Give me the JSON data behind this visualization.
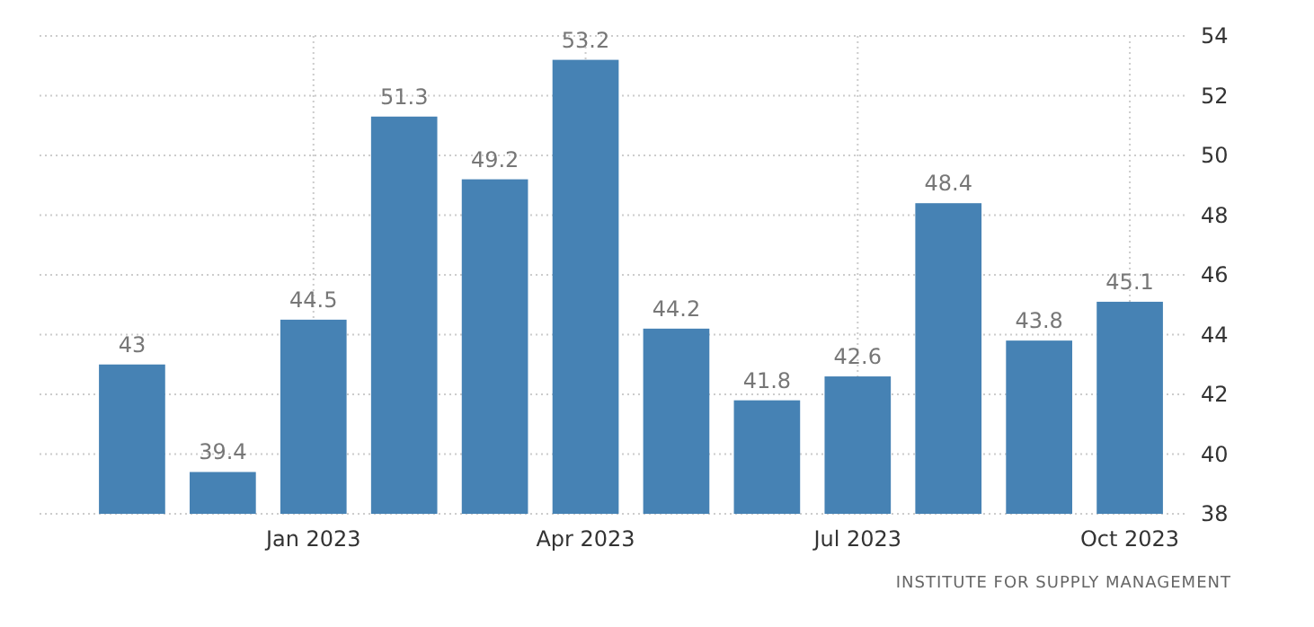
{
  "chart_data": {
    "type": "bar",
    "categories": [
      null,
      null,
      "Jan 2023",
      null,
      null,
      "Apr 2023",
      null,
      null,
      "Jul 2023",
      null,
      null,
      "Oct 2023"
    ],
    "values": [
      43,
      39.4,
      44.5,
      51.3,
      49.2,
      53.2,
      44.2,
      41.8,
      42.6,
      48.4,
      43.8,
      45.1
    ],
    "color": "#4682b4",
    "ylim": [
      38,
      54
    ],
    "yticks": [
      38,
      40,
      42,
      44,
      46,
      48,
      50,
      52,
      54
    ],
    "grid": true,
    "data_labels": true,
    "annotations": [
      "INSTITUTE FOR SUPPLY MANAGEMENT"
    ]
  }
}
